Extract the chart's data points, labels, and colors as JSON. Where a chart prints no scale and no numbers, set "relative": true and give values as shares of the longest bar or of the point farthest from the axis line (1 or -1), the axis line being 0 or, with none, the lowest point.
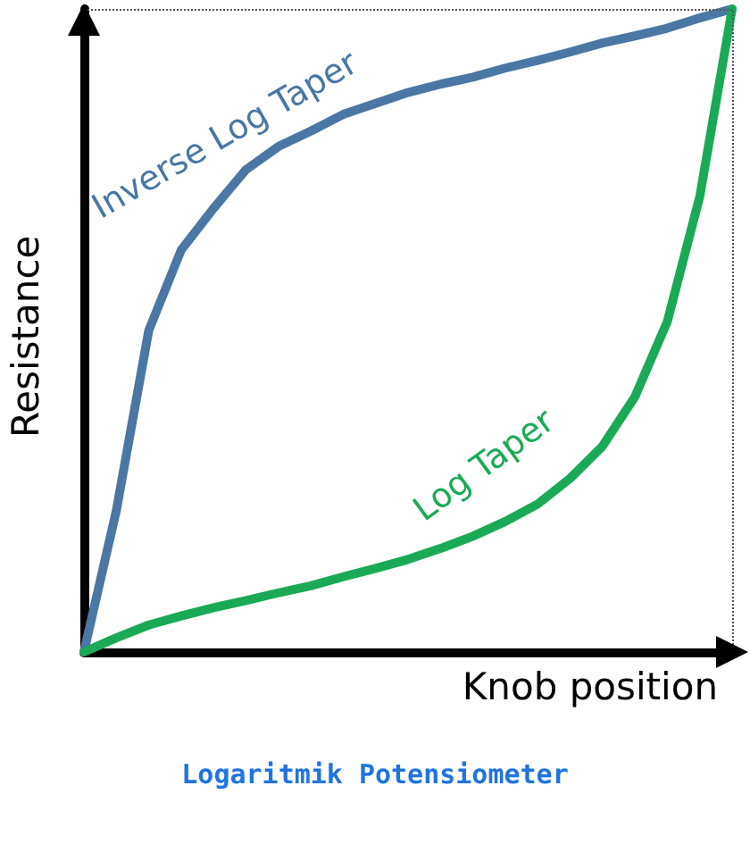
{
  "chart_data": {
    "type": "line",
    "relative": true,
    "xlabel": "Knob position",
    "ylabel": "Resistance",
    "annotations": [
      "Logaritmik Potensiometer"
    ],
    "categories": [
      null,
      null,
      null,
      null,
      null,
      null,
      null,
      null,
      null,
      null,
      null,
      null,
      null,
      null,
      null,
      null,
      null,
      null,
      null,
      null,
      null
    ],
    "series": [
      {
        "name": "Inverse Log Taper",
        "color": "#4a77a4",
        "values": [
          0,
          0.22,
          0.5,
          0.625,
          0.69,
          0.75,
          0.786,
          0.81,
          0.836,
          0.853,
          0.87,
          0.883,
          0.894,
          0.908,
          0.92,
          0.933,
          0.947,
          0.958,
          0.97,
          0.986,
          1
        ]
      },
      {
        "name": "Log Taper",
        "color": "#1aaa55",
        "values": [
          0,
          0.022,
          0.042,
          0.056,
          0.069,
          0.08,
          0.092,
          0.103,
          0.117,
          0.13,
          0.144,
          0.161,
          0.18,
          0.203,
          0.23,
          0.27,
          0.32,
          0.397,
          0.514,
          0.708,
          1
        ]
      }
    ],
    "ref_lines": [
      {
        "axis": "y",
        "value": 1,
        "color": "#555555",
        "line_style": "dotted"
      }
    ],
    "grid": false,
    "legend": false,
    "marker": "none",
    "line_style": "solid"
  }
}
